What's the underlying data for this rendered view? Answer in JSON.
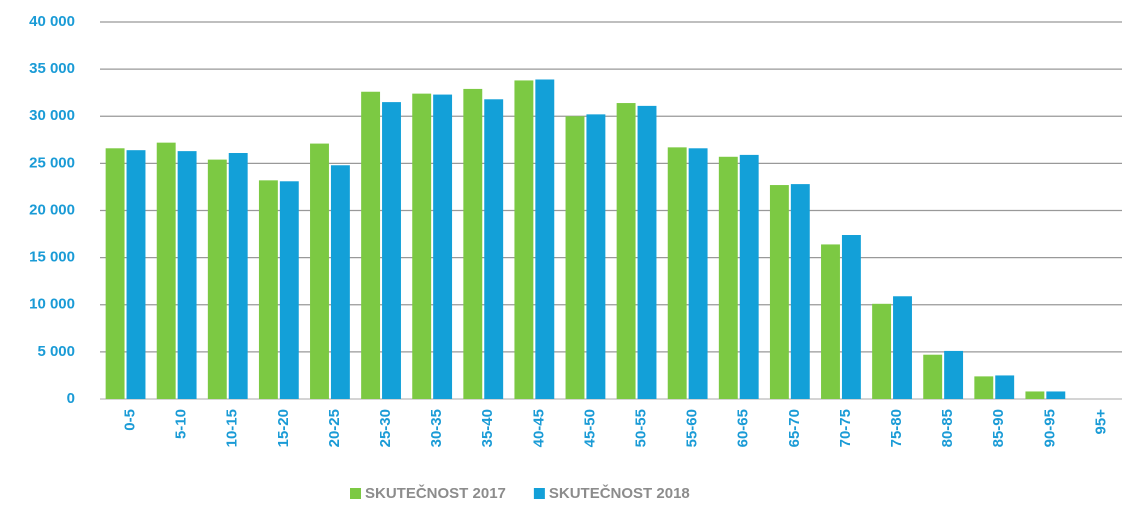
{
  "chart_data": {
    "type": "bar",
    "categories": [
      "0-5",
      "5-10",
      "10-15",
      "15-20",
      "20-25",
      "25-30",
      "30-35",
      "35-40",
      "40-45",
      "45-50",
      "50-55",
      "55-60",
      "60-65",
      "65-70",
      "70-75",
      "75-80",
      "80-85",
      "85-90",
      "90-95",
      "95+"
    ],
    "series": [
      {
        "name": "SKUTEČNOST 2017",
        "color": "#7cc943",
        "values": [
          26600,
          27200,
          25400,
          23200,
          27100,
          32600,
          32400,
          32900,
          33800,
          30000,
          31400,
          26700,
          25700,
          22700,
          16400,
          10100,
          4700,
          2400,
          800,
          0
        ]
      },
      {
        "name": "SKUTEČNOST 2018",
        "color": "#13a0d8",
        "values": [
          26400,
          26300,
          26100,
          23100,
          24800,
          31500,
          32300,
          31800,
          33900,
          30200,
          31100,
          26600,
          25900,
          22800,
          17400,
          10900,
          5100,
          2500,
          800,
          0
        ]
      }
    ],
    "ylim": [
      0,
      40000
    ],
    "yticks": [
      0,
      {
        "value": 5000,
        "label": "5 000"
      },
      {
        "value": 10000,
        "label": "10 000"
      },
      {
        "value": 15000,
        "label": "15 000"
      },
      {
        "value": 20000,
        "label": "20 000"
      },
      {
        "value": 25000,
        "label": "25 000"
      },
      {
        "value": 30000,
        "label": "30 000"
      },
      {
        "value": 35000,
        "label": "35 000"
      },
      {
        "value": 40000,
        "label": "40 000"
      }
    ],
    "grid": true,
    "legend": "bottom"
  }
}
